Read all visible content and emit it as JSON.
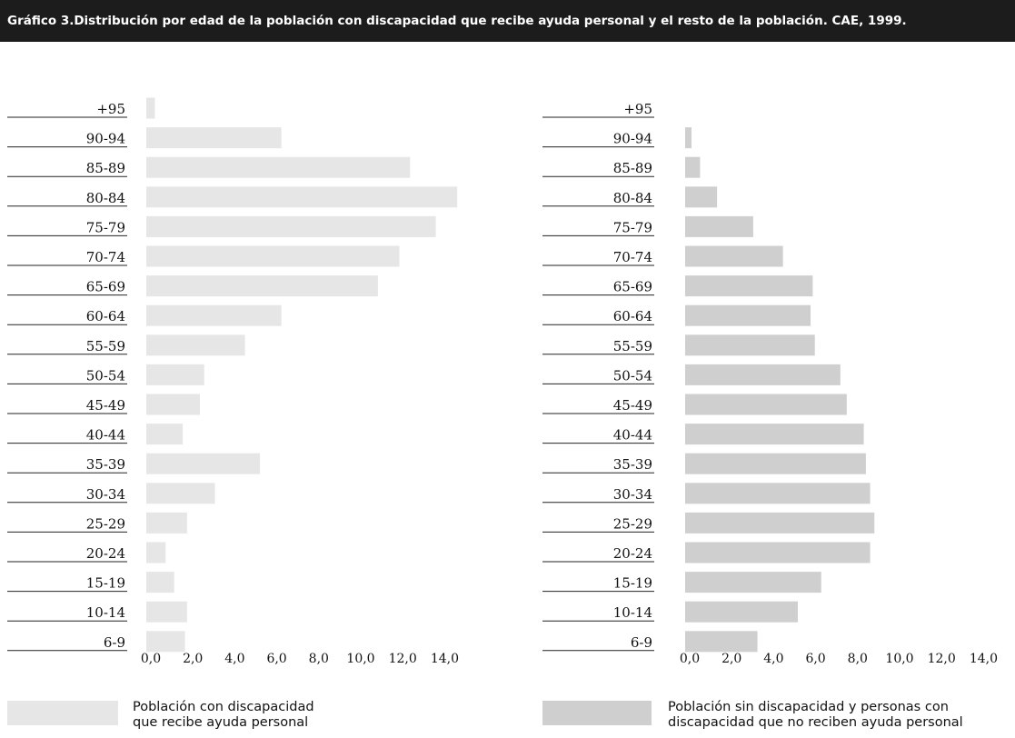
{
  "title": "Gráfico 3.Distribución por edad de la población con discapacidad  que recibe ayuda personal y el resto de la población.  CAE, 1999.",
  "chart_data": [
    {
      "type": "bar",
      "orientation": "horizontal",
      "series_name": "Población con discapacidad que recibe ayuda personal",
      "legend_lines": [
        "Población con discapacidad",
        "que recibe ayuda personal"
      ],
      "color": "#e6e6e6",
      "categories": [
        "+95",
        "90-94",
        "85-89",
        "80-84",
        "75-79",
        "70-74",
        "65-69",
        "60-64",
        "55-59",
        "50-54",
        "45-49",
        "40-44",
        "35-39",
        "30-34",
        "25-29",
        "20-24",
        "15-19",
        "10-14",
        "6-9"
      ],
      "values": [
        0.4,
        6.3,
        12.3,
        14.5,
        13.5,
        11.8,
        10.8,
        6.3,
        4.6,
        2.7,
        2.5,
        1.7,
        5.3,
        3.2,
        1.9,
        0.9,
        1.3,
        1.9,
        1.8
      ],
      "xticks": [
        "0,0",
        "2,0",
        "4,0",
        "6,0",
        "8,0",
        "10,0",
        "12,0",
        "14,0"
      ],
      "xlim": [
        0,
        14
      ],
      "grid": false
    },
    {
      "type": "bar",
      "orientation": "horizontal",
      "series_name": "Población sin discapacidad y personas con discapacidad que no reciben ayuda personal",
      "legend_lines": [
        "Población sin discapacidad y personas con",
        "discapacidad que no reciben ayuda personal"
      ],
      "color": "#cfcfcf",
      "categories": [
        "+95",
        "90-94",
        "85-89",
        "80-84",
        "75-79",
        "70-74",
        "65-69",
        "60-64",
        "55-59",
        "50-54",
        "45-49",
        "40-44",
        "35-39",
        "30-34",
        "25-29",
        "20-24",
        "15-19",
        "10-14",
        "6-9"
      ],
      "values": [
        0.0,
        0.3,
        0.7,
        1.5,
        3.2,
        4.6,
        6.0,
        5.9,
        6.1,
        7.3,
        7.6,
        8.4,
        8.5,
        8.7,
        8.9,
        8.7,
        6.4,
        5.3,
        3.4
      ],
      "xticks": [
        "0,0",
        "2,0",
        "4,0",
        "6,0",
        "8,0",
        "10,0",
        "12,0",
        "14,0"
      ],
      "xlim": [
        0,
        14
      ],
      "grid": false
    }
  ]
}
